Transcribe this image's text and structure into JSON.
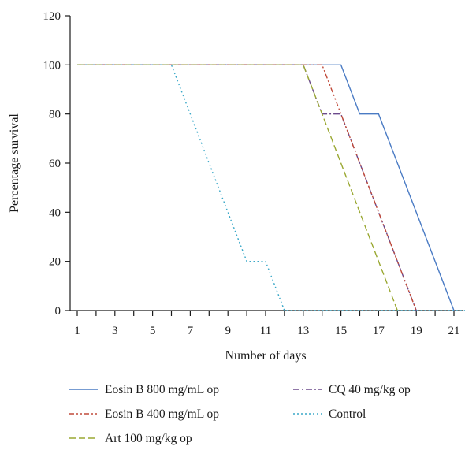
{
  "chart_data": {
    "type": "line",
    "xlabel": "Number of days",
    "ylabel": "Percentage survival",
    "xlim": [
      1,
      22
    ],
    "ylim": [
      0,
      120
    ],
    "x_ticks": [
      1,
      2,
      3,
      4,
      5,
      6,
      7,
      8,
      9,
      10,
      11,
      12,
      13,
      14,
      15,
      16,
      17,
      18,
      19,
      20,
      21,
      22
    ],
    "x_tick_labels": [
      "1",
      "3",
      "5",
      "7",
      "9",
      "11",
      "13",
      "15",
      "17",
      "19",
      "21"
    ],
    "y_tick_labels": [
      "0",
      "20",
      "40",
      "60",
      "80",
      "100",
      "120"
    ],
    "y_ticks": [
      0,
      20,
      40,
      60,
      80,
      100,
      120
    ],
    "grid": false,
    "legend_position": "bottom",
    "series": [
      {
        "name": "Eosin B 800 mg/mL op",
        "color": "#4a7bc4",
        "dash": "solid",
        "points": [
          [
            1,
            100
          ],
          [
            15,
            100
          ],
          [
            16,
            80
          ],
          [
            17,
            80
          ],
          [
            21,
            0
          ]
        ]
      },
      {
        "name": "CQ 40 mg/kg op",
        "color": "#6b4a8c",
        "dash": "dashdot",
        "points": [
          [
            1,
            100
          ],
          [
            13,
            100
          ],
          [
            14,
            80
          ],
          [
            15,
            80
          ],
          [
            19,
            0
          ]
        ]
      },
      {
        "name": "Eosin B 400 mg/mL op",
        "color": "#c04a3a",
        "dash": "dashdotdot",
        "points": [
          [
            1,
            100
          ],
          [
            14,
            100
          ],
          [
            19,
            0
          ]
        ]
      },
      {
        "name": "Control",
        "color": "#3aa8c8",
        "dash": "dotted",
        "points": [
          [
            1,
            100
          ],
          [
            6,
            100
          ],
          [
            10,
            20
          ],
          [
            11,
            20
          ],
          [
            12,
            0
          ],
          [
            22,
            0
          ]
        ]
      },
      {
        "name": "Art 100 mg/kg op",
        "color": "#9aa832",
        "dash": "dashed",
        "points": [
          [
            1,
            100
          ],
          [
            13,
            100
          ],
          [
            18,
            0
          ]
        ]
      }
    ]
  }
}
